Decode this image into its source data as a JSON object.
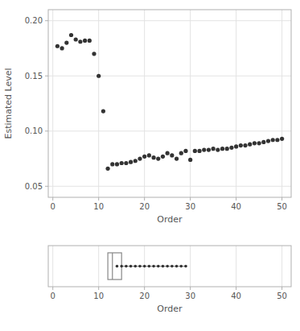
{
  "chart_data": [
    {
      "type": "scatter",
      "x": [
        1,
        2,
        3,
        4,
        5,
        6,
        7,
        8,
        9,
        10,
        11,
        12,
        13,
        14,
        15,
        16,
        17,
        18,
        19,
        20,
        21,
        22,
        23,
        24,
        25,
        26,
        27,
        28,
        29,
        30,
        31,
        32,
        33,
        34,
        35,
        36,
        37,
        38,
        39,
        40,
        41,
        42,
        43,
        44,
        45,
        46,
        47,
        48,
        49,
        50
      ],
      "values": [
        0.177,
        0.175,
        0.18,
        0.187,
        0.183,
        0.181,
        0.182,
        0.182,
        0.17,
        0.15,
        0.118,
        0.066,
        0.07,
        0.07,
        0.071,
        0.071,
        0.072,
        0.073,
        0.075,
        0.077,
        0.078,
        0.076,
        0.075,
        0.077,
        0.08,
        0.078,
        0.075,
        0.08,
        0.082,
        0.074,
        0.082,
        0.082,
        0.083,
        0.083,
        0.084,
        0.083,
        0.084,
        0.084,
        0.085,
        0.086,
        0.087,
        0.087,
        0.088,
        0.089,
        0.089,
        0.09,
        0.091,
        0.092,
        0.092,
        0.093
      ],
      "color": "#333333",
      "x_label": "Order",
      "y_label": "Estimated Level",
      "xlim": [
        -1,
        52
      ],
      "ylim": [
        0.04,
        0.21
      ],
      "xticks": [
        0,
        10,
        20,
        30,
        40,
        50
      ],
      "yticks": [
        0.05,
        {
          "value": 0.1,
          "label": "0.10"
        },
        0.15,
        {
          "value": 0.2,
          "label": "0.20"
        }
      ],
      "grid": true
    },
    {
      "type": "box",
      "orientation": "horizontal",
      "box": {
        "whisker_lo": 12,
        "q1": 12,
        "median": 13,
        "q3": 15,
        "whisker_hi": 29
      },
      "points": [
        14,
        15,
        16,
        17,
        18,
        19,
        20,
        21,
        22,
        23,
        24,
        25,
        26,
        27,
        28,
        29
      ],
      "color": "#333333",
      "x_label": "Order",
      "xlim": [
        -1,
        52
      ],
      "xticks": [
        0,
        10,
        20,
        30,
        40,
        50
      ],
      "grid": true
    }
  ]
}
